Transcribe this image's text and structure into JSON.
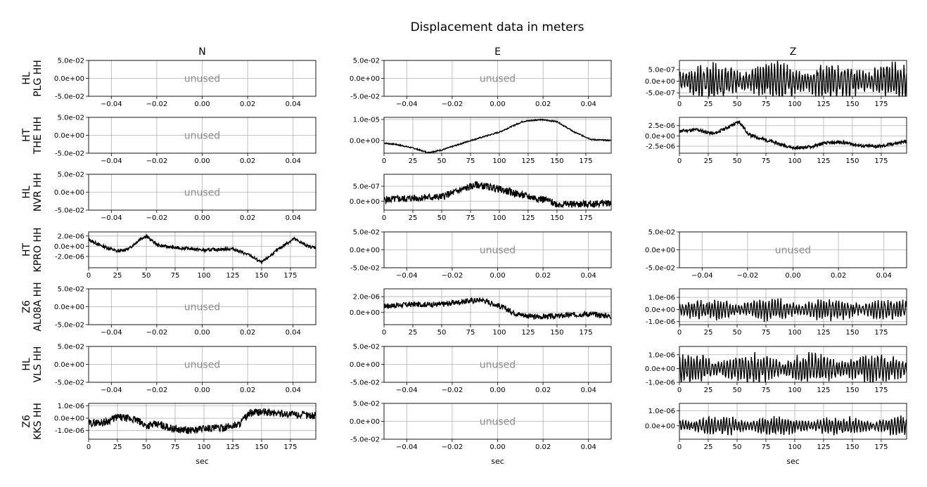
{
  "title": "Displacement data in meters",
  "columns": [
    "N",
    "E",
    "Z"
  ],
  "rows": [
    {
      "label_top": "HL",
      "label_bottom": "PLG HH"
    },
    {
      "label_top": "HT",
      "label_bottom": "THE HH"
    },
    {
      "label_top": "HL",
      "label_bottom": "NVR HH"
    },
    {
      "label_top": "HT",
      "label_bottom": "KPRO HH"
    },
    {
      "label_top": "Z6",
      "label_bottom": "AL08A HH"
    },
    {
      "label_top": "HL",
      "label_bottom": "VLS HH"
    },
    {
      "label_top": "Z6",
      "label_bottom": "KKS HH"
    }
  ],
  "unused_text": "unused",
  "xlabel": "sec",
  "line_color": "#000000",
  "grid_color": "#b0b0b0",
  "unused_color": "#8c8c8c",
  "chart_data": {
    "type": "line",
    "grid": true,
    "unused_axes": {
      "xticks": [
        "−0.04",
        "−0.02",
        "0.00",
        "0.02",
        "0.04"
      ],
      "xtick_values": [
        -0.04,
        -0.02,
        0.0,
        0.02,
        0.04
      ],
      "xlim": [
        -0.05,
        0.05
      ],
      "yticks": [
        "5.0e-02",
        "0.0e+00",
        "-5.0e-02"
      ],
      "ytick_values": [
        0.05,
        0.0,
        -0.05
      ],
      "ylim": [
        -0.05,
        0.05
      ]
    },
    "used_xticks": [
      "0",
      "25",
      "50",
      "75",
      "100",
      "125",
      "150",
      "175"
    ],
    "used_xtick_values": [
      0,
      25,
      50,
      75,
      100,
      125,
      150,
      175
    ],
    "used_xlim": [
      0,
      197
    ],
    "panels": [
      {
        "row": 0,
        "col": 0,
        "unused": true
      },
      {
        "row": 0,
        "col": 1,
        "unused": true
      },
      {
        "row": 0,
        "col": 2,
        "unused": false,
        "ylim": [
          -6.5e-07,
          9e-07
        ],
        "yticks": [
          "5.0e-07",
          "0.0e+00",
          "-5.0e-07"
        ],
        "ytick_values": [
          5e-07,
          0,
          -5e-07
        ],
        "kind": "noise",
        "amp": 4.5e-07,
        "seed": 3,
        "x": [
          0,
          25,
          50,
          75,
          100,
          125,
          150,
          175,
          197
        ],
        "y": [
          0,
          0,
          0,
          0,
          0,
          0,
          0,
          0,
          0
        ]
      },
      {
        "row": 1,
        "col": 0,
        "unused": true
      },
      {
        "row": 1,
        "col": 1,
        "unused": false,
        "ylim": [
          -6e-06,
          1.1e-05
        ],
        "yticks": [
          "1.0e-05",
          "0.0e+00"
        ],
        "ytick_values": [
          1e-05,
          0
        ],
        "kind": "smooth",
        "amp": 3e-07,
        "seed": 7,
        "x": [
          0,
          10,
          25,
          38,
          50,
          75,
          100,
          120,
          135,
          150,
          165,
          180,
          197
        ],
        "y": [
          -1.2e-06,
          -1.8e-06,
          -3.5e-06,
          -5.7e-06,
          -4.5e-06,
          0.0,
          4e-06,
          9e-06,
          1e-05,
          9e-06,
          4e-06,
          5e-07,
          0.0
        ]
      },
      {
        "row": 1,
        "col": 2,
        "unused": false,
        "ylim": [
          -4.2e-06,
          4.5e-06
        ],
        "yticks": [
          "2.5e-06",
          "0.0e+00",
          "-2.5e-06"
        ],
        "ytick_values": [
          2.5e-06,
          0,
          -2.5e-06
        ],
        "kind": "smooth",
        "amp": 4e-07,
        "seed": 11,
        "x": [
          0,
          15,
          30,
          45,
          52,
          60,
          75,
          90,
          100,
          115,
          125,
          140,
          160,
          175,
          197
        ],
        "y": [
          1.2e-06,
          1.5e-06,
          5e-07,
          2.5e-06,
          3.5e-06,
          3e-07,
          -1e-06,
          -2.2e-06,
          -3e-06,
          -2.6e-06,
          -1.8e-06,
          -1.5e-06,
          -2.5e-06,
          -2.5e-06,
          -1.3e-06
        ]
      },
      {
        "row": 2,
        "col": 0,
        "unused": true
      },
      {
        "row": 2,
        "col": 1,
        "unused": false,
        "ylim": [
          -3e-07,
          9e-07
        ],
        "yticks": [
          "5.0e-07",
          "0.0e+00"
        ],
        "ytick_values": [
          5e-07,
          0
        ],
        "kind": "smooth",
        "amp": 1.2e-07,
        "seed": 5,
        "x": [
          0,
          25,
          50,
          65,
          80,
          95,
          110,
          125,
          140,
          150,
          175,
          197
        ],
        "y": [
          5e-08,
          1e-07,
          1.5e-07,
          3.5e-07,
          5.5e-07,
          4.5e-07,
          3e-07,
          1.5e-07,
          5e-08,
          -1e-07,
          -1e-07,
          -5e-08
        ]
      },
      {
        "row": 3,
        "col": 0,
        "unused": false,
        "ylim": [
          -4.2e-06,
          2.8e-06
        ],
        "yticks": [
          "2.0e-06",
          "0.0e+00",
          "-2.0e-06"
        ],
        "ytick_values": [
          2e-06,
          0,
          -2e-06
        ],
        "kind": "smooth",
        "amp": 3e-07,
        "seed": 13,
        "x": [
          0,
          10,
          25,
          35,
          45,
          50,
          60,
          75,
          90,
          100,
          112,
          125,
          140,
          150,
          165,
          178,
          190,
          197
        ],
        "y": [
          1.3e-06,
          2e-07,
          -1e-06,
          -5e-07,
          1.5e-06,
          2e-06,
          2e-07,
          -3e-07,
          -5e-07,
          -8e-07,
          -6e-07,
          -5e-07,
          -1.8e-06,
          -3.2e-06,
          -5e-07,
          1.5e-06,
          0.0,
          -3e-07
        ]
      },
      {
        "row": 3,
        "col": 1,
        "unused": true
      },
      {
        "row": 3,
        "col": 2,
        "unused": true
      },
      {
        "row": 4,
        "col": 0,
        "unused": true
      },
      {
        "row": 4,
        "col": 1,
        "unused": false,
        "ylim": [
          -1.6e-06,
          3e-06
        ],
        "yticks": [
          "2.0e-06",
          "0.0e+00"
        ],
        "ytick_values": [
          2e-06,
          0
        ],
        "kind": "smooth",
        "amp": 3.5e-07,
        "seed": 17,
        "x": [
          0,
          25,
          50,
          70,
          85,
          100,
          115,
          130,
          150,
          175,
          197
        ],
        "y": [
          8e-07,
          1e-06,
          1e-06,
          1.4e-06,
          1.6e-06,
          8e-07,
          -2e-07,
          -6e-07,
          -5e-07,
          -2e-07,
          -5e-07
        ]
      },
      {
        "row": 4,
        "col": 2,
        "unused": false,
        "ylim": [
          -1.25e-06,
          1.7e-06
        ],
        "yticks": [
          "1.0e-06",
          "0.0e+00",
          "-1.0e-06"
        ],
        "ytick_values": [
          1e-06,
          0,
          -1e-06
        ],
        "kind": "noise",
        "amp": 5e-07,
        "seed": 19,
        "x": [
          0,
          25,
          50,
          75,
          100,
          125,
          150,
          175,
          197
        ],
        "y": [
          0,
          0,
          0,
          0,
          0,
          0,
          0,
          0,
          0
        ]
      },
      {
        "row": 5,
        "col": 0,
        "unused": true
      },
      {
        "row": 5,
        "col": 1,
        "unused": true
      },
      {
        "row": 5,
        "col": 2,
        "unused": false,
        "ylim": [
          -1e-06,
          1.6e-06
        ],
        "yticks": [
          "1.0e-06",
          "0.0e+00",
          "-1.0e-06"
        ],
        "ytick_values": [
          1e-06,
          0,
          -1e-06
        ],
        "kind": "noise",
        "amp": 6e-07,
        "seed": 23,
        "x": [
          0,
          25,
          50,
          75,
          100,
          125,
          150,
          175,
          197
        ],
        "y": [
          0,
          0,
          0,
          0,
          0,
          0,
          0,
          0,
          0
        ]
      },
      {
        "row": 6,
        "col": 0,
        "unused": false,
        "ylim": [
          -1.7e-06,
          1.2e-06
        ],
        "yticks": [
          "1.0e-06",
          "0.0e+00",
          "-1.0e-06"
        ],
        "ytick_values": [
          1e-06,
          0,
          -1e-06
        ],
        "kind": "smooth",
        "amp": 3e-07,
        "seed": 29,
        "x": [
          0,
          15,
          25,
          40,
          50,
          60,
          75,
          90,
          100,
          115,
          130,
          140,
          150,
          165,
          180,
          197
        ],
        "y": [
          -4e-07,
          -3e-07,
          1e-07,
          -1e-07,
          -6e-07,
          -5e-07,
          -9e-07,
          -1e-06,
          -8e-07,
          -8e-07,
          -5e-07,
          4e-07,
          5e-07,
          4e-07,
          3e-07,
          2e-07
        ]
      },
      {
        "row": 6,
        "col": 1,
        "unused": true
      },
      {
        "row": 6,
        "col": 2,
        "unused": false,
        "ylim": [
          -9e-07,
          1.5e-06
        ],
        "yticks": [
          "1.0e-06",
          "0.0e+00"
        ],
        "ytick_values": [
          1e-06,
          0
        ],
        "kind": "noise",
        "amp": 3.5e-07,
        "seed": 31,
        "x": [
          0,
          25,
          50,
          75,
          100,
          125,
          150,
          175,
          197
        ],
        "y": [
          0,
          0,
          0,
          0,
          0,
          0,
          0,
          0,
          0
        ]
      }
    ]
  }
}
